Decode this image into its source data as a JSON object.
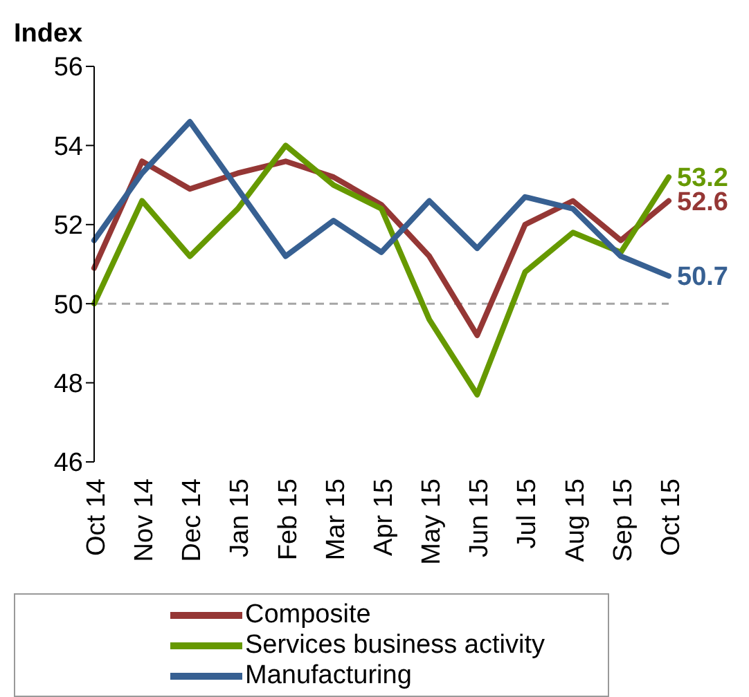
{
  "chart_data": {
    "type": "line",
    "ylabel": "Index",
    "categories": [
      "Oct 14",
      "Nov 14",
      "Dec 14",
      "Jan 15",
      "Feb 15",
      "Mar 15",
      "Apr 15",
      "May 15",
      "Jun 15",
      "Jul 15",
      "Aug 15",
      "Sep 15",
      "Oct 15"
    ],
    "series": [
      {
        "name": "Composite",
        "color": "#953735",
        "values": [
          50.9,
          53.6,
          52.9,
          53.3,
          53.6,
          53.2,
          52.5,
          51.2,
          49.2,
          52.0,
          52.6,
          51.6,
          52.6
        ],
        "value_labels": [
          null,
          null,
          null,
          null,
          null,
          null,
          null,
          null,
          null,
          null,
          null,
          null,
          "52.6"
        ]
      },
      {
        "name": "Services business activity",
        "color": "#669900",
        "values": [
          50.0,
          52.6,
          51.2,
          52.4,
          54.0,
          53.0,
          52.4,
          49.6,
          47.7,
          50.8,
          51.8,
          51.3,
          53.2
        ],
        "value_labels": [
          null,
          null,
          null,
          null,
          null,
          null,
          null,
          null,
          null,
          null,
          null,
          null,
          "53.2"
        ]
      },
      {
        "name": "Manufacturing",
        "color": "#376092",
        "values": [
          51.6,
          53.3,
          54.6,
          52.9,
          51.2,
          52.1,
          51.3,
          52.6,
          51.4,
          52.7,
          52.4,
          51.2,
          50.7
        ],
        "value_labels": [
          null,
          null,
          null,
          null,
          null,
          null,
          null,
          null,
          null,
          null,
          null,
          null,
          "50.7"
        ]
      }
    ],
    "ylim": [
      46,
      56
    ],
    "yticks": [
      46,
      48,
      50,
      52,
      54,
      56
    ],
    "ref_lines": [
      {
        "axis": "y",
        "value": 50,
        "color": "#a6a6a6",
        "line_style": "dashed"
      }
    ],
    "grid": false,
    "legend": "bottom",
    "marker": "none",
    "line_style": "solid"
  }
}
